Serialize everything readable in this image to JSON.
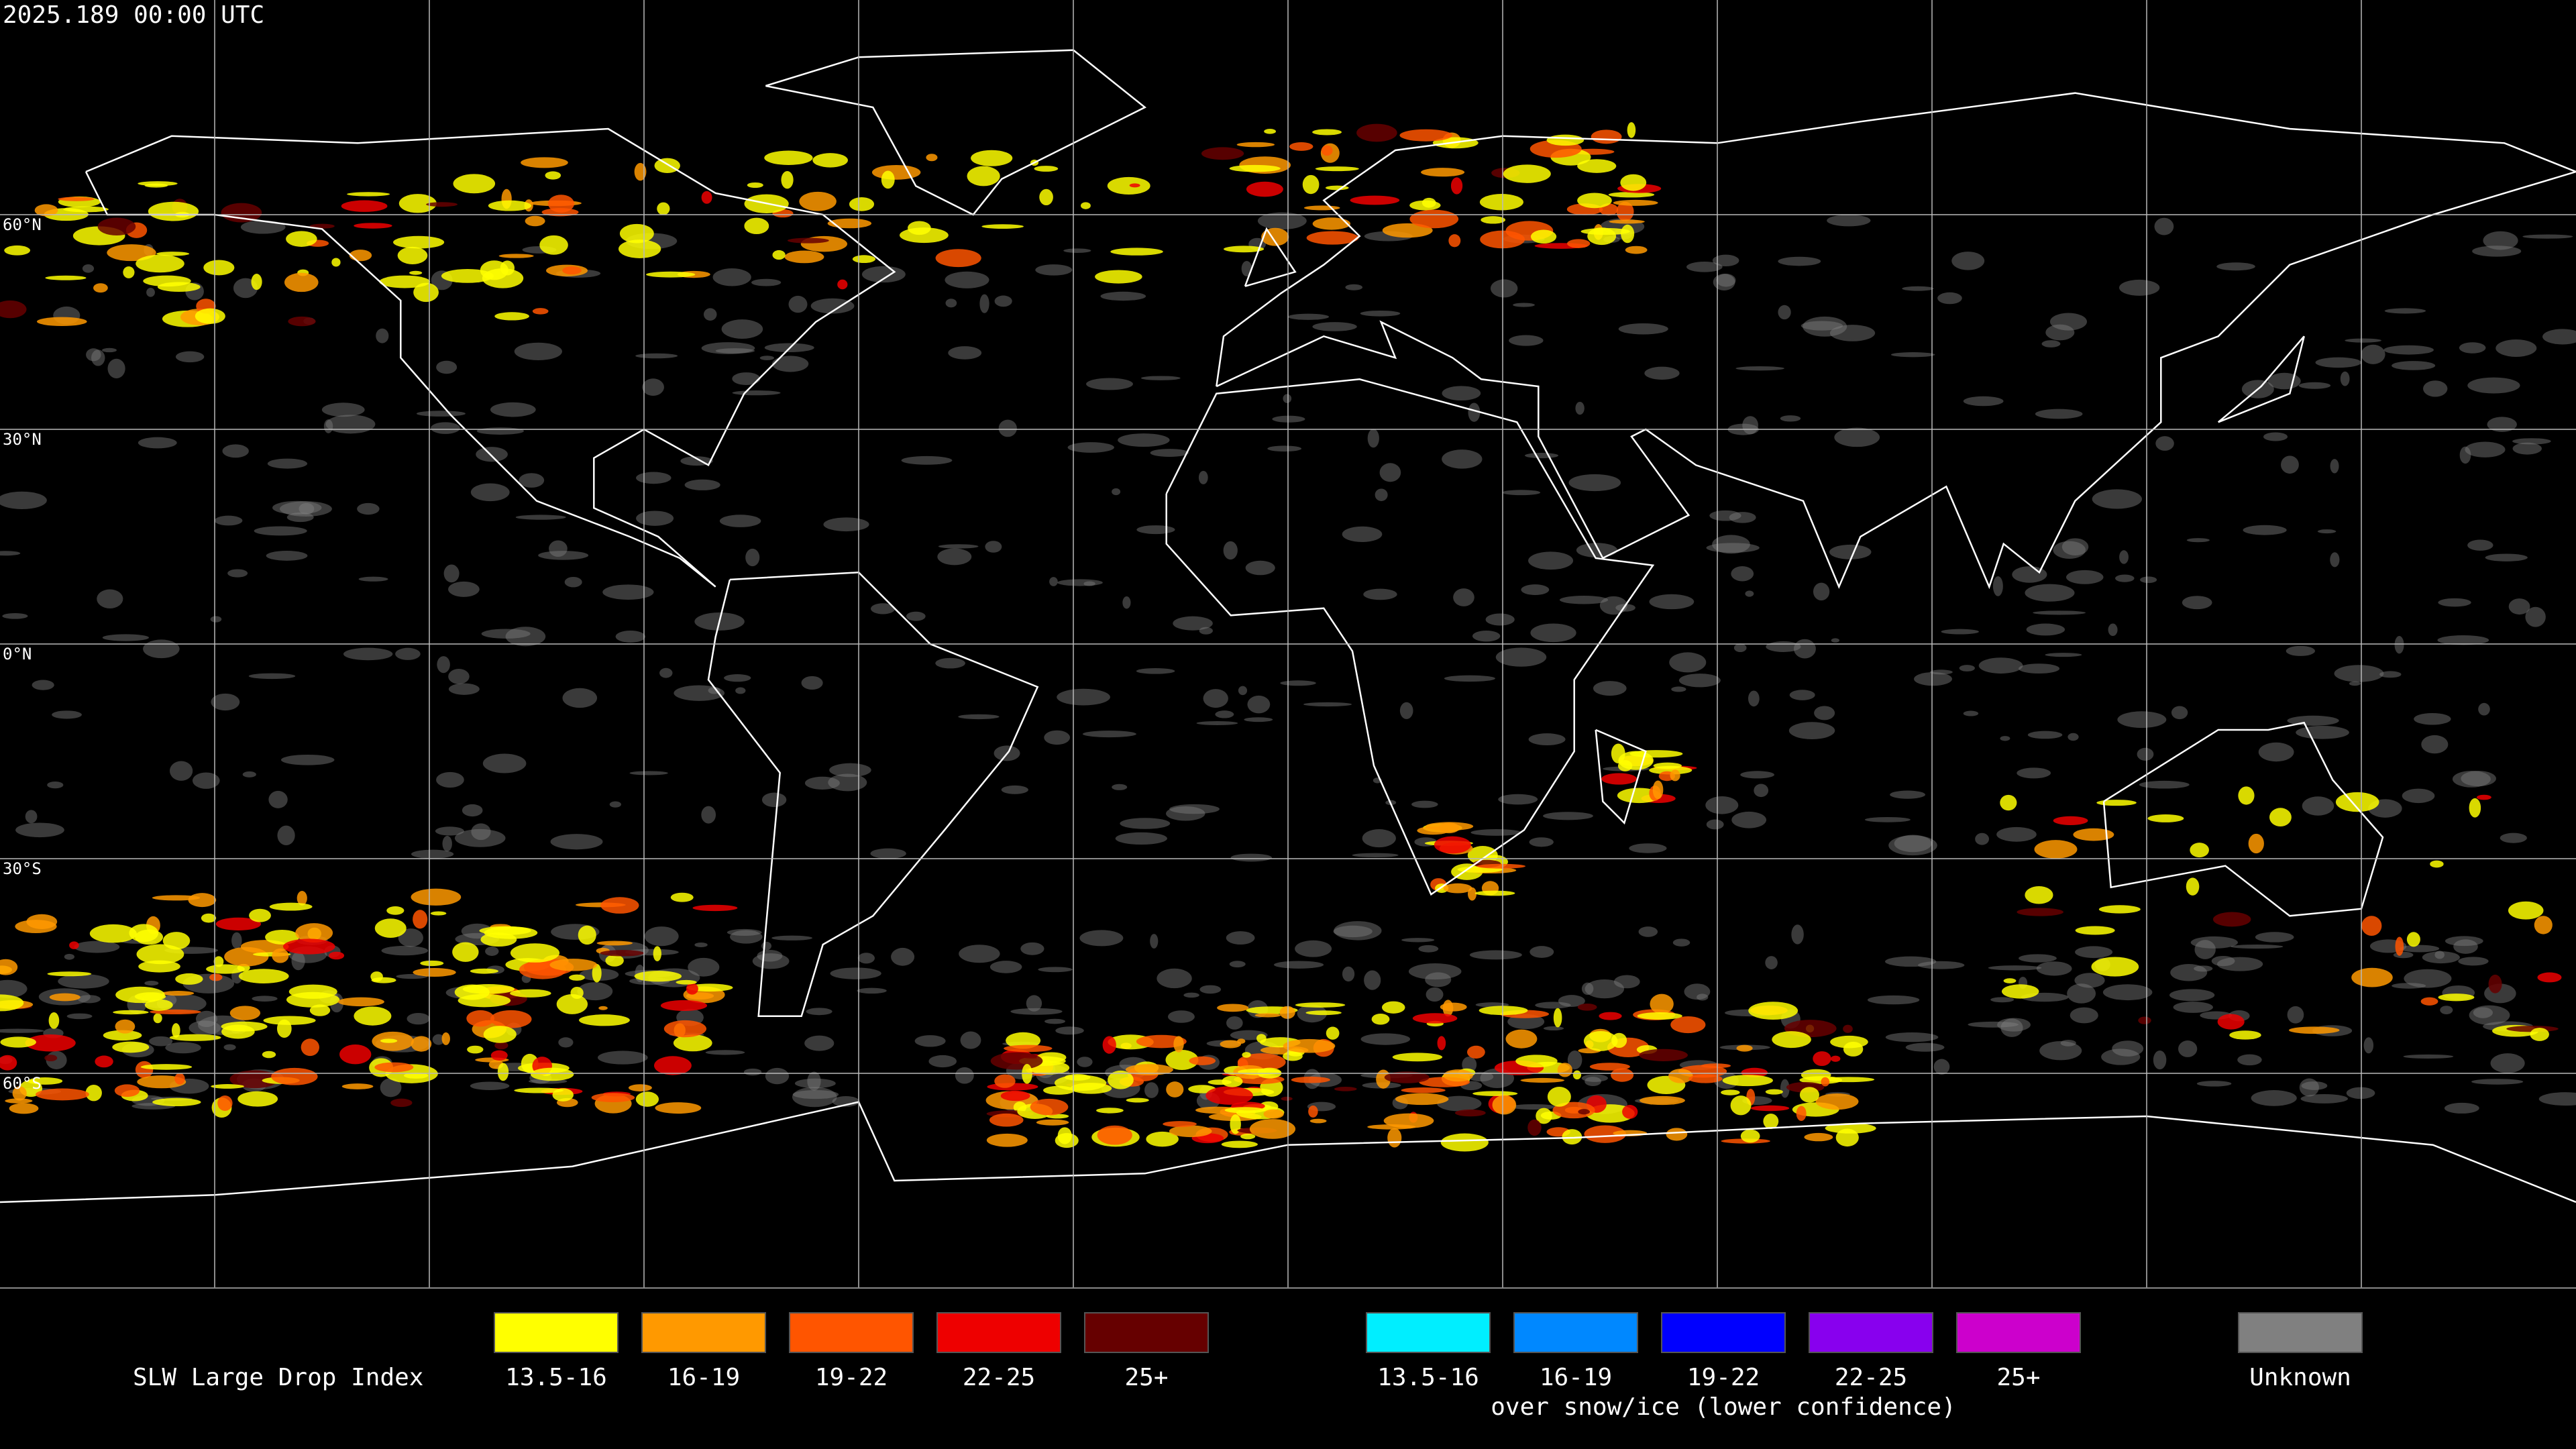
{
  "header": {
    "timestamp": "2025.189 00:00 UTC"
  },
  "map": {
    "latitude_labels": [
      "60°N",
      "30°N",
      "0°N",
      "30°S",
      "60°S"
    ]
  },
  "legend": {
    "title": "SLW Large Drop Index",
    "groups": [
      {
        "items": [
          {
            "label": "13.5-16",
            "color": "#ffff00"
          },
          {
            "label": "16-19",
            "color": "#ff9900"
          },
          {
            "label": "19-22",
            "color": "#ff5500"
          },
          {
            "label": "22-25",
            "color": "#ee0000"
          },
          {
            "label": "25+",
            "color": "#660000"
          }
        ]
      },
      {
        "items": [
          {
            "label": "13.5-16",
            "color": "#00eeff"
          },
          {
            "label": "16-19",
            "color": "#0088ff"
          },
          {
            "label": "19-22",
            "color": "#0000ff"
          },
          {
            "label": "22-25",
            "color": "#8800ee"
          },
          {
            "label": "25+",
            "color": "#cc00cc"
          }
        ],
        "caption": "over snow/ice (lower confidence)"
      },
      {
        "items": [
          {
            "label": "Unknown",
            "color": "#808080"
          }
        ]
      }
    ]
  }
}
